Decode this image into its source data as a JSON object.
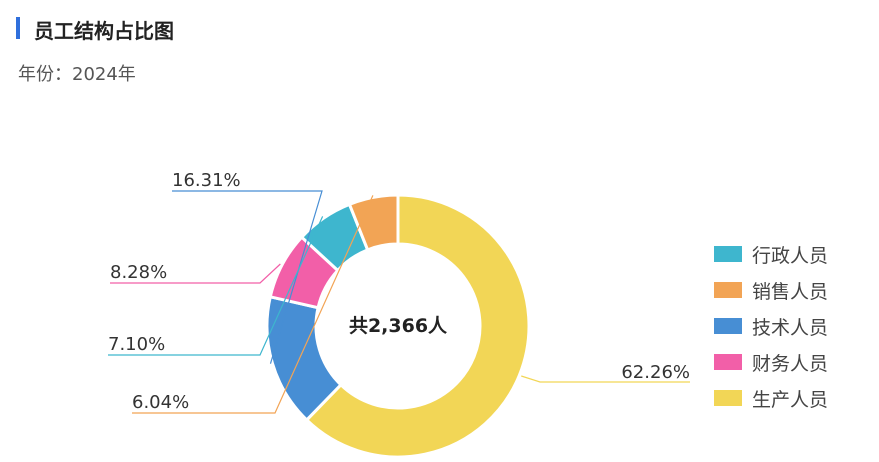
{
  "header": {
    "title": "员工结构占比图",
    "subtitle": "年份：2024年"
  },
  "chart_data": {
    "type": "pie",
    "donut": true,
    "center_label": "共2,366人",
    "legend_position": "right",
    "categories": [
      "生产人员",
      "技术人员",
      "财务人员",
      "行政人员",
      "销售人员"
    ],
    "values": [
      62.26,
      16.31,
      8.28,
      7.1,
      6.04
    ],
    "value_labels": [
      "62.26%",
      "16.31%",
      "8.28%",
      "7.10%",
      "6.04%"
    ],
    "colors": [
      "#f2d656",
      "#478ed4",
      "#f25fa8",
      "#3eb6ce",
      "#f2a455"
    ]
  },
  "legend": [
    {
      "label": "行政人员",
      "color": "#3eb6ce"
    },
    {
      "label": "销售人员",
      "color": "#f2a455"
    },
    {
      "label": "技术人员",
      "color": "#478ed4"
    },
    {
      "label": "财务人员",
      "color": "#f25fa8"
    },
    {
      "label": "生产人员",
      "color": "#f2d656"
    }
  ]
}
